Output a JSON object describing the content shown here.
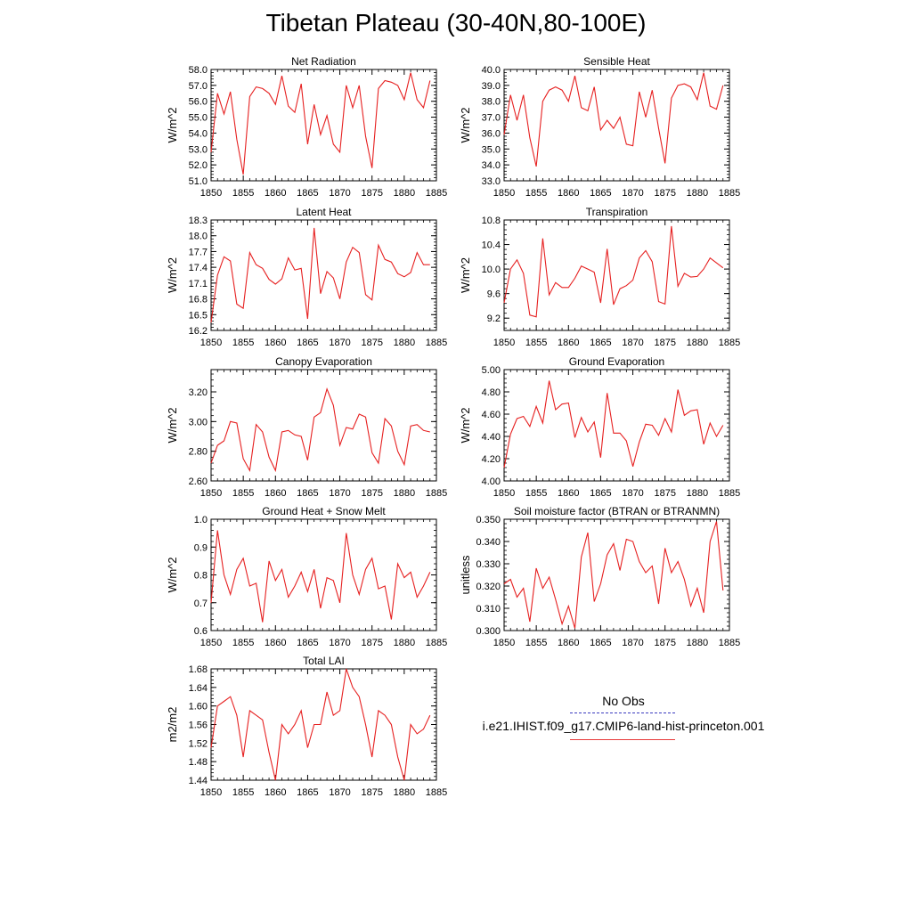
{
  "title": "Tibetan Plateau (30-40N,80-100E)",
  "legend": {
    "no_obs": "No Obs",
    "run": "i.e21.IHIST.f09_g17.CMIP6-land-hist-princeton.001",
    "obs_color": "#3b3bbf",
    "model_color": "#e62020"
  },
  "chart_data": [
    {
      "type": "line",
      "title": "Net Radiation",
      "ylabel": "W/m^2",
      "xlim": [
        1850,
        1885
      ],
      "ylim": [
        51.0,
        58.0
      ],
      "xticks": [
        "1850",
        "1855",
        "1860",
        "1865",
        "1870",
        "1875",
        "1880",
        "1885"
      ],
      "yticks": [
        "51.0",
        "52.0",
        "53.0",
        "54.0",
        "55.0",
        "56.0",
        "57.0",
        "58.0"
      ],
      "x": [
        1850,
        1851,
        1852,
        1853,
        1854,
        1855,
        1856,
        1857,
        1858,
        1859,
        1860,
        1861,
        1862,
        1863,
        1864,
        1865,
        1866,
        1867,
        1868,
        1869,
        1870,
        1871,
        1872,
        1873,
        1874,
        1875,
        1876,
        1877,
        1878,
        1879,
        1880,
        1881,
        1882,
        1883,
        1884
      ],
      "values": [
        52.8,
        56.5,
        55.2,
        56.6,
        53.6,
        51.4,
        56.3,
        56.9,
        56.8,
        56.5,
        55.8,
        57.6,
        55.7,
        55.3,
        57.1,
        53.3,
        55.8,
        53.9,
        55.1,
        53.3,
        52.8,
        57.0,
        55.6,
        57.0,
        53.8,
        51.8,
        56.8,
        57.3,
        57.2,
        57.0,
        56.1,
        57.8,
        56.1,
        55.6,
        57.3
      ]
    },
    {
      "type": "line",
      "title": "Sensible Heat",
      "ylabel": "W/m^2",
      "xlim": [
        1850,
        1885
      ],
      "ylim": [
        33.0,
        40.0
      ],
      "xticks": [
        "1850",
        "1855",
        "1860",
        "1865",
        "1870",
        "1875",
        "1880",
        "1885"
      ],
      "yticks": [
        "33.0",
        "34.0",
        "35.0",
        "36.0",
        "37.0",
        "38.0",
        "39.0",
        "40.0"
      ],
      "x": [
        1850,
        1851,
        1852,
        1853,
        1854,
        1855,
        1856,
        1857,
        1858,
        1859,
        1860,
        1861,
        1862,
        1863,
        1864,
        1865,
        1866,
        1867,
        1868,
        1869,
        1870,
        1871,
        1872,
        1873,
        1874,
        1875,
        1876,
        1877,
        1878,
        1879,
        1880,
        1881,
        1882,
        1883,
        1884
      ],
      "values": [
        35.9,
        38.4,
        36.8,
        38.4,
        35.7,
        33.9,
        38.0,
        38.7,
        38.9,
        38.7,
        38.0,
        39.6,
        37.6,
        37.4,
        38.9,
        36.2,
        36.8,
        36.3,
        37.0,
        35.3,
        35.2,
        38.6,
        37.0,
        38.7,
        36.3,
        34.1,
        38.2,
        39.0,
        39.1,
        38.9,
        38.1,
        39.8,
        37.7,
        37.5,
        39.0
      ]
    },
    {
      "type": "line",
      "title": "Latent Heat",
      "ylabel": "W/m^2",
      "xlim": [
        1850,
        1885
      ],
      "ylim": [
        16.2,
        18.3
      ],
      "xticks": [
        "1850",
        "1855",
        "1860",
        "1865",
        "1870",
        "1875",
        "1880",
        "1885"
      ],
      "yticks": [
        "16.2",
        "16.5",
        "16.8",
        "17.1",
        "17.4",
        "17.7",
        "18.0",
        "18.3"
      ],
      "x": [
        1850,
        1851,
        1852,
        1853,
        1854,
        1855,
        1856,
        1857,
        1858,
        1859,
        1860,
        1861,
        1862,
        1863,
        1864,
        1865,
        1866,
        1867,
        1868,
        1869,
        1870,
        1871,
        1872,
        1873,
        1874,
        1875,
        1876,
        1877,
        1878,
        1879,
        1880,
        1881,
        1882,
        1883,
        1884
      ],
      "values": [
        16.35,
        17.25,
        17.6,
        17.52,
        16.7,
        16.62,
        17.68,
        17.45,
        17.38,
        17.17,
        17.08,
        17.18,
        17.58,
        17.35,
        17.38,
        16.42,
        18.15,
        16.9,
        17.32,
        17.2,
        16.8,
        17.5,
        17.78,
        17.68,
        16.88,
        16.78,
        17.82,
        17.55,
        17.5,
        17.28,
        17.22,
        17.3,
        17.68,
        17.45,
        17.45
      ]
    },
    {
      "type": "line",
      "title": "Transpiration",
      "ylabel": "W/m^2",
      "xlim": [
        1850,
        1885
      ],
      "ylim": [
        9.0,
        10.8
      ],
      "xticks": [
        "1850",
        "1855",
        "1860",
        "1865",
        "1870",
        "1875",
        "1880",
        "1885"
      ],
      "yticks": [
        "9.2",
        "9.6",
        "10.0",
        "10.4",
        "10.8"
      ],
      "x": [
        1850,
        1851,
        1852,
        1853,
        1854,
        1855,
        1856,
        1857,
        1858,
        1859,
        1860,
        1861,
        1862,
        1863,
        1864,
        1865,
        1866,
        1867,
        1868,
        1869,
        1870,
        1871,
        1872,
        1873,
        1874,
        1875,
        1876,
        1877,
        1878,
        1879,
        1880,
        1881,
        1882,
        1883,
        1884
      ],
      "values": [
        9.45,
        10.0,
        10.15,
        9.93,
        9.25,
        9.22,
        10.5,
        9.58,
        9.78,
        9.7,
        9.7,
        9.85,
        10.05,
        10.0,
        9.95,
        9.45,
        10.33,
        9.42,
        9.68,
        9.73,
        9.82,
        10.18,
        10.3,
        10.12,
        9.47,
        9.43,
        10.7,
        9.72,
        9.93,
        9.87,
        9.88,
        10.0,
        10.18,
        10.1,
        10.02
      ]
    },
    {
      "type": "line",
      "title": "Canopy Evaporation",
      "ylabel": "W/m^2",
      "xlim": [
        1850,
        1885
      ],
      "ylim": [
        2.6,
        3.35
      ],
      "xticks": [
        "1850",
        "1855",
        "1860",
        "1865",
        "1870",
        "1875",
        "1880",
        "1885"
      ],
      "yticks": [
        "2.60",
        "2.80",
        "3.00",
        "3.20"
      ],
      "x": [
        1850,
        1851,
        1852,
        1853,
        1854,
        1855,
        1856,
        1857,
        1858,
        1859,
        1860,
        1861,
        1862,
        1863,
        1864,
        1865,
        1866,
        1867,
        1868,
        1869,
        1870,
        1871,
        1872,
        1873,
        1874,
        1875,
        1876,
        1877,
        1878,
        1879,
        1880,
        1881,
        1882,
        1883,
        1884
      ],
      "values": [
        2.72,
        2.84,
        2.87,
        3.0,
        2.99,
        2.75,
        2.67,
        2.98,
        2.93,
        2.76,
        2.67,
        2.93,
        2.94,
        2.91,
        2.9,
        2.74,
        3.03,
        3.06,
        3.22,
        3.11,
        2.84,
        2.96,
        2.95,
        3.05,
        3.03,
        2.79,
        2.72,
        3.02,
        2.97,
        2.8,
        2.71,
        2.97,
        2.98,
        2.94,
        2.93
      ]
    },
    {
      "type": "line",
      "title": "Ground Evaporation",
      "ylabel": "W/m^2",
      "xlim": [
        1850,
        1885
      ],
      "ylim": [
        4.0,
        5.0
      ],
      "xticks": [
        "1850",
        "1855",
        "1860",
        "1865",
        "1870",
        "1875",
        "1880",
        "1885"
      ],
      "yticks": [
        "4.00",
        "4.20",
        "4.40",
        "4.60",
        "4.80",
        "5.00"
      ],
      "x": [
        1850,
        1851,
        1852,
        1853,
        1854,
        1855,
        1856,
        1857,
        1858,
        1859,
        1860,
        1861,
        1862,
        1863,
        1864,
        1865,
        1866,
        1867,
        1868,
        1869,
        1870,
        1871,
        1872,
        1873,
        1874,
        1875,
        1876,
        1877,
        1878,
        1879,
        1880,
        1881,
        1882,
        1883,
        1884
      ],
      "values": [
        4.12,
        4.42,
        4.56,
        4.58,
        4.49,
        4.67,
        4.52,
        4.9,
        4.64,
        4.69,
        4.7,
        4.39,
        4.57,
        4.44,
        4.53,
        4.21,
        4.79,
        4.43,
        4.43,
        4.36,
        4.13,
        4.35,
        4.51,
        4.5,
        4.41,
        4.56,
        4.44,
        4.82,
        4.59,
        4.63,
        4.64,
        4.33,
        4.52,
        4.4,
        4.5
      ]
    },
    {
      "type": "line",
      "title": "Ground Heat + Snow Melt",
      "ylabel": "W/m^2",
      "xlim": [
        1850,
        1885
      ],
      "ylim": [
        0.6,
        1.0
      ],
      "xticks": [
        "1850",
        "1855",
        "1860",
        "1865",
        "1870",
        "1875",
        "1880",
        "1885"
      ],
      "yticks": [
        "0.6",
        "0.7",
        "0.8",
        "0.9",
        "1.0"
      ],
      "x": [
        1850,
        1851,
        1852,
        1853,
        1854,
        1855,
        1856,
        1857,
        1858,
        1859,
        1860,
        1861,
        1862,
        1863,
        1864,
        1865,
        1866,
        1867,
        1868,
        1869,
        1870,
        1871,
        1872,
        1873,
        1874,
        1875,
        1876,
        1877,
        1878,
        1879,
        1880,
        1881,
        1882,
        1883,
        1884
      ],
      "values": [
        0.7,
        0.96,
        0.8,
        0.73,
        0.82,
        0.86,
        0.76,
        0.77,
        0.63,
        0.85,
        0.78,
        0.82,
        0.72,
        0.76,
        0.81,
        0.74,
        0.82,
        0.68,
        0.79,
        0.78,
        0.7,
        0.95,
        0.8,
        0.73,
        0.82,
        0.86,
        0.75,
        0.76,
        0.64,
        0.84,
        0.79,
        0.81,
        0.72,
        0.76,
        0.81
      ]
    },
    {
      "type": "line",
      "title": "Soil moisture factor (BTRAN or BTRANMN)",
      "ylabel": "unitless",
      "xlim": [
        1850,
        1885
      ],
      "ylim": [
        0.3,
        0.35
      ],
      "xticks": [
        "1850",
        "1855",
        "1860",
        "1865",
        "1870",
        "1875",
        "1880",
        "1885"
      ],
      "yticks": [
        "0.300",
        "0.310",
        "0.320",
        "0.330",
        "0.340",
        "0.350"
      ],
      "x": [
        1850,
        1851,
        1852,
        1853,
        1854,
        1855,
        1856,
        1857,
        1858,
        1859,
        1860,
        1861,
        1862,
        1863,
        1864,
        1865,
        1866,
        1867,
        1868,
        1869,
        1870,
        1871,
        1872,
        1873,
        1874,
        1875,
        1876,
        1877,
        1878,
        1879,
        1880,
        1881,
        1882,
        1883,
        1884
      ],
      "values": [
        0.321,
        0.323,
        0.315,
        0.319,
        0.304,
        0.328,
        0.319,
        0.324,
        0.314,
        0.303,
        0.311,
        0.301,
        0.333,
        0.344,
        0.313,
        0.321,
        0.334,
        0.339,
        0.327,
        0.341,
        0.34,
        0.331,
        0.326,
        0.329,
        0.312,
        0.337,
        0.326,
        0.331,
        0.323,
        0.311,
        0.319,
        0.308,
        0.34,
        0.349,
        0.318
      ]
    },
    {
      "type": "line",
      "title": "Total LAI",
      "ylabel": "m2/m2",
      "xlim": [
        1850,
        1885
      ],
      "ylim": [
        1.44,
        1.68
      ],
      "xticks": [
        "1850",
        "1855",
        "1860",
        "1865",
        "1870",
        "1875",
        "1880",
        "1885"
      ],
      "yticks": [
        "1.44",
        "1.48",
        "1.52",
        "1.56",
        "1.60",
        "1.64",
        "1.68"
      ],
      "x": [
        1850,
        1851,
        1852,
        1853,
        1854,
        1855,
        1856,
        1857,
        1858,
        1859,
        1860,
        1861,
        1862,
        1863,
        1864,
        1865,
        1866,
        1867,
        1868,
        1869,
        1870,
        1871,
        1872,
        1873,
        1874,
        1875,
        1876,
        1877,
        1878,
        1879,
        1880,
        1881,
        1882,
        1883,
        1884
      ],
      "values": [
        1.51,
        1.6,
        1.61,
        1.62,
        1.58,
        1.49,
        1.59,
        1.58,
        1.57,
        1.5,
        1.44,
        1.56,
        1.54,
        1.56,
        1.59,
        1.51,
        1.56,
        1.56,
        1.63,
        1.58,
        1.59,
        1.68,
        1.64,
        1.62,
        1.56,
        1.49,
        1.59,
        1.58,
        1.56,
        1.49,
        1.44,
        1.56,
        1.54,
        1.55,
        1.58
      ]
    }
  ]
}
